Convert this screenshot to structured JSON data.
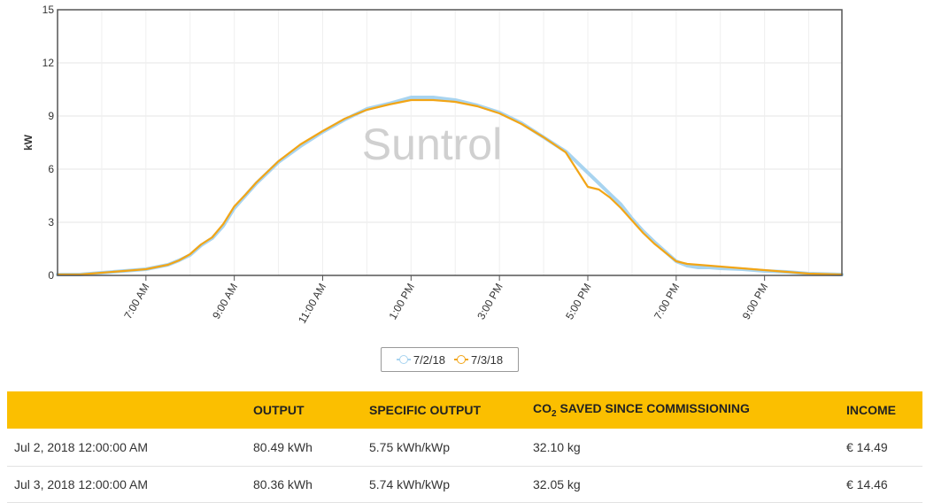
{
  "chart_data": {
    "type": "line",
    "ylabel": "kW",
    "ylim": [
      0,
      15
    ],
    "yticks": [
      "0",
      "3",
      "6",
      "9",
      "12",
      "15"
    ],
    "xlim": [
      5.0,
      22.75
    ],
    "xticks": [
      {
        "x": 7,
        "label": "7:00 AM"
      },
      {
        "x": 9,
        "label": "9:00 AM"
      },
      {
        "x": 11,
        "label": "11:00 AM"
      },
      {
        "x": 13,
        "label": "1:00 PM"
      },
      {
        "x": 15,
        "label": "3:00 PM"
      },
      {
        "x": 17,
        "label": "5:00 PM"
      },
      {
        "x": 19,
        "label": "7:00 PM"
      },
      {
        "x": 21,
        "label": "9:00 PM"
      }
    ],
    "watermark": "Suntrol",
    "grid": true,
    "legend": "bottom-center",
    "series": [
      {
        "name": "7/2/18",
        "color": "#a8d4f0",
        "x": [
          5.0,
          5.5,
          5.75,
          6.0,
          6.5,
          7.0,
          7.5,
          7.75,
          8.0,
          8.25,
          8.5,
          8.75,
          9.0,
          9.25,
          9.5,
          9.75,
          10.0,
          10.5,
          11.0,
          11.5,
          12.0,
          12.5,
          13.0,
          13.5,
          14.0,
          14.5,
          15.0,
          15.5,
          16.0,
          16.5,
          17.0,
          17.25,
          17.5,
          17.75,
          18.0,
          18.25,
          18.5,
          18.75,
          19.0,
          19.25,
          19.5,
          19.75,
          20.0,
          20.5,
          21.0,
          21.5,
          22.0,
          22.75
        ],
        "y": [
          0.05,
          0.05,
          0.1,
          0.15,
          0.25,
          0.35,
          0.6,
          0.85,
          1.15,
          1.7,
          2.1,
          2.8,
          3.8,
          4.5,
          5.2,
          5.8,
          6.4,
          7.3,
          8.1,
          8.8,
          9.4,
          9.7,
          10.05,
          10.05,
          9.9,
          9.6,
          9.2,
          8.6,
          7.8,
          7.0,
          5.8,
          5.2,
          4.6,
          4.0,
          3.2,
          2.5,
          1.9,
          1.35,
          0.8,
          0.55,
          0.45,
          0.45,
          0.4,
          0.35,
          0.25,
          0.2,
          0.1,
          0.05
        ]
      },
      {
        "name": "7/3/18",
        "color": "#f2a516",
        "x": [
          5.0,
          5.5,
          5.75,
          6.0,
          6.5,
          7.0,
          7.5,
          7.75,
          8.0,
          8.25,
          8.5,
          8.75,
          9.0,
          9.25,
          9.5,
          9.75,
          10.0,
          10.5,
          11.0,
          11.5,
          12.0,
          12.5,
          13.0,
          13.5,
          14.0,
          14.5,
          15.0,
          15.5,
          16.0,
          16.5,
          17.0,
          17.25,
          17.5,
          17.75,
          18.0,
          18.25,
          18.5,
          18.75,
          19.0,
          19.25,
          19.5,
          19.75,
          20.0,
          20.5,
          21.0,
          21.5,
          22.0,
          22.75
        ],
        "y": [
          0.05,
          0.05,
          0.1,
          0.15,
          0.25,
          0.35,
          0.6,
          0.85,
          1.2,
          1.75,
          2.15,
          2.9,
          3.9,
          4.55,
          5.25,
          5.85,
          6.45,
          7.4,
          8.15,
          8.85,
          9.35,
          9.65,
          9.9,
          9.9,
          9.8,
          9.55,
          9.15,
          8.55,
          7.8,
          6.95,
          5.0,
          4.85,
          4.4,
          3.8,
          3.1,
          2.4,
          1.8,
          1.3,
          0.8,
          0.65,
          0.6,
          0.55,
          0.5,
          0.4,
          0.3,
          0.2,
          0.1,
          0.05
        ]
      }
    ]
  },
  "table": {
    "headers": [
      "",
      "OUTPUT",
      "SPECIFIC OUTPUT",
      "CO",
      "2",
      " SAVED SINCE COMMISSIONING",
      "INCOME"
    ],
    "rows": [
      {
        "date": "Jul 2, 2018 12:00:00 AM",
        "output": "80.49 kWh",
        "specific": "5.75 kWh/kWp",
        "co2": "32.10 kg",
        "income": "€ 14.49"
      },
      {
        "date": "Jul 3, 2018 12:00:00 AM",
        "output": "80.36 kWh",
        "specific": "5.74 kWh/kWp",
        "co2": "32.05 kg",
        "income": "€ 14.46"
      }
    ]
  }
}
